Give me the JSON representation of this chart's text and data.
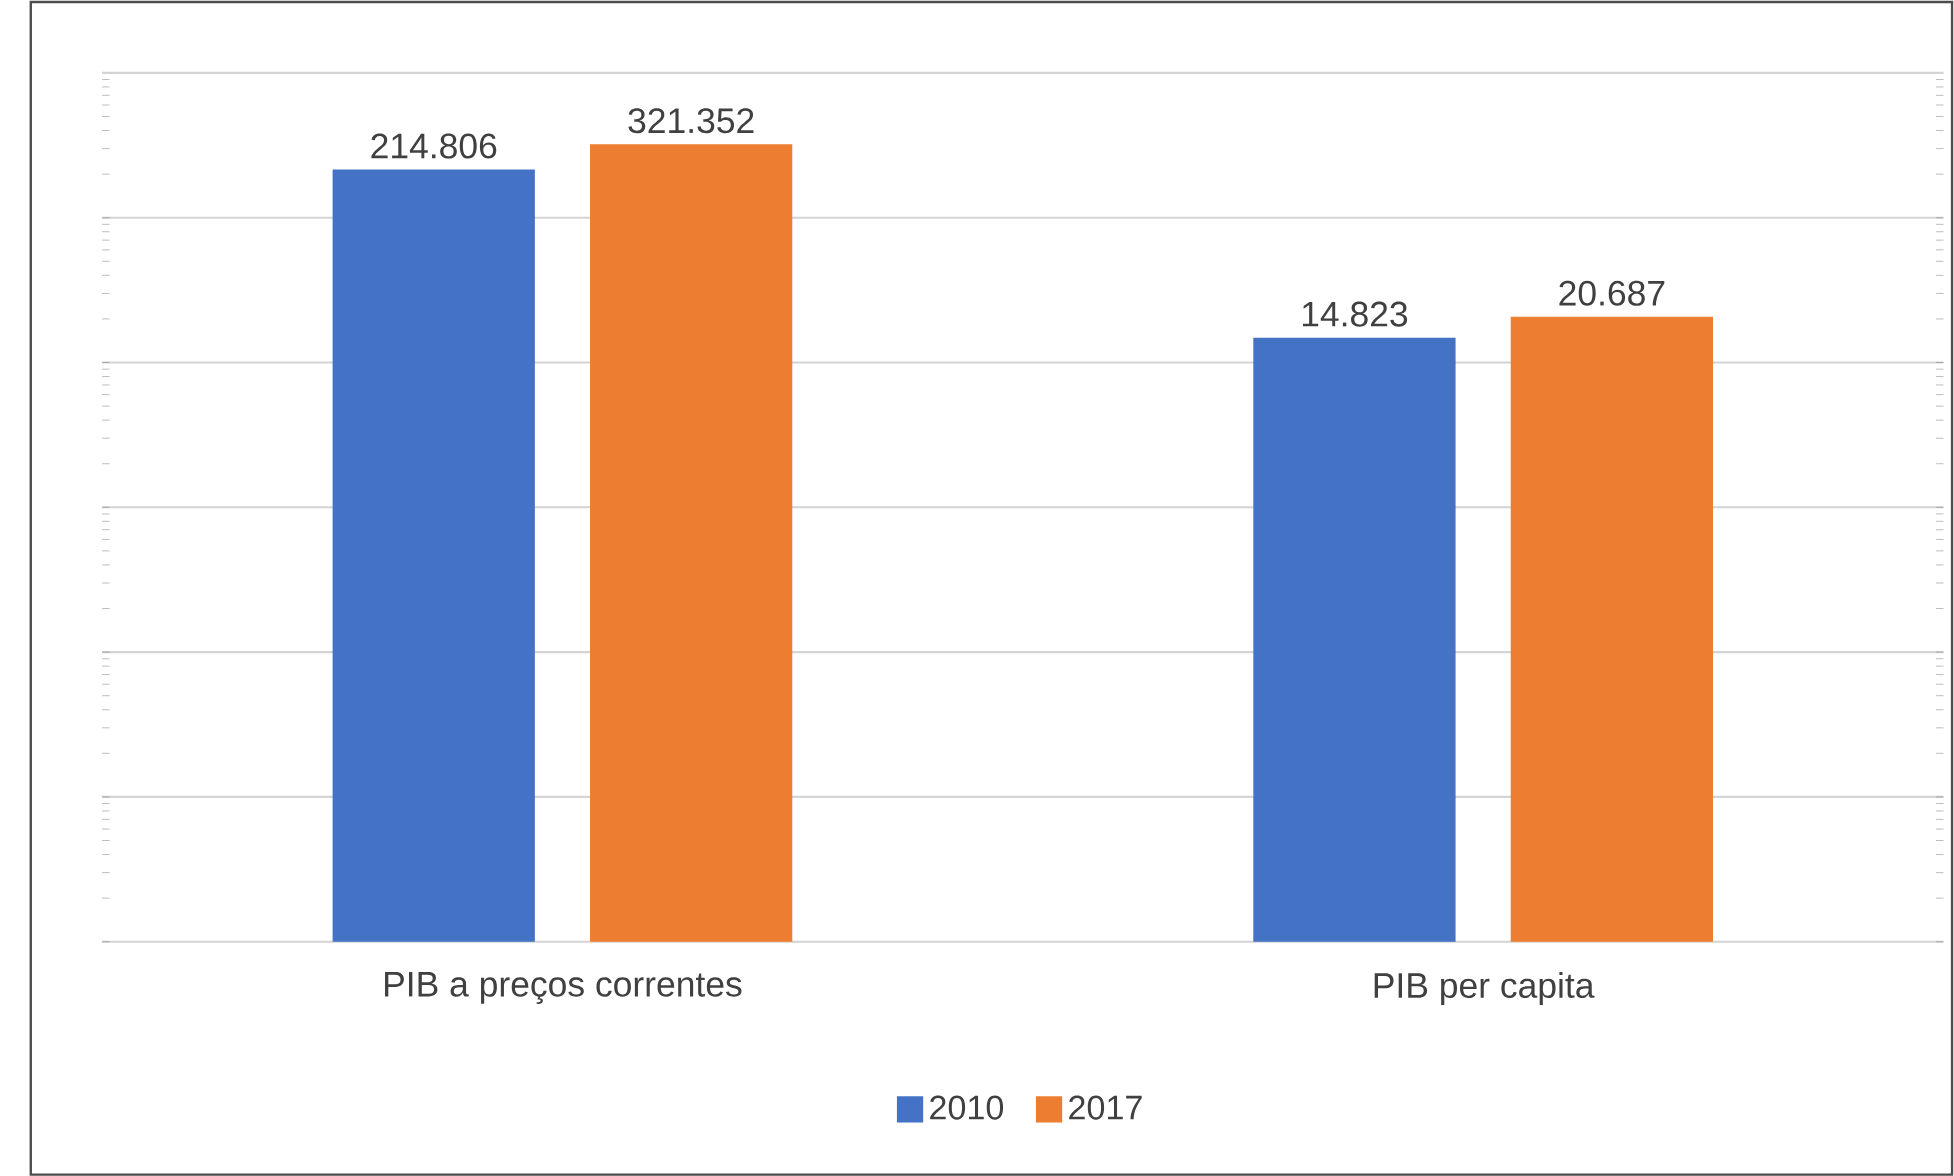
{
  "chart_data": {
    "type": "bar",
    "log": "y",
    "categories": [
      "PIB a preços correntes",
      "PIB per capita"
    ],
    "series": [
      {
        "name": "2010",
        "color": "#4472c4",
        "values": [
          214806,
          14823
        ],
        "value_labels": [
          "214.806",
          "14.823"
        ]
      },
      {
        "name": "2017",
        "color": "#ed7d31",
        "values": [
          321352,
          20687
        ],
        "value_labels": [
          "321.352",
          "20.687"
        ]
      }
    ],
    "ylim": [
      1,
      1000000
    ],
    "yticks": [
      {
        "value": 1,
        "label": null
      },
      {
        "value": 10,
        "label": null
      },
      {
        "value": 100,
        "label": null
      },
      {
        "value": 1000,
        "label": null
      },
      {
        "value": 10000,
        "label": null
      },
      {
        "value": 100000,
        "label": null
      },
      {
        "value": 1000000,
        "label": null
      }
    ],
    "tick_labels": "x",
    "grid": "y",
    "legend": "bottom"
  }
}
